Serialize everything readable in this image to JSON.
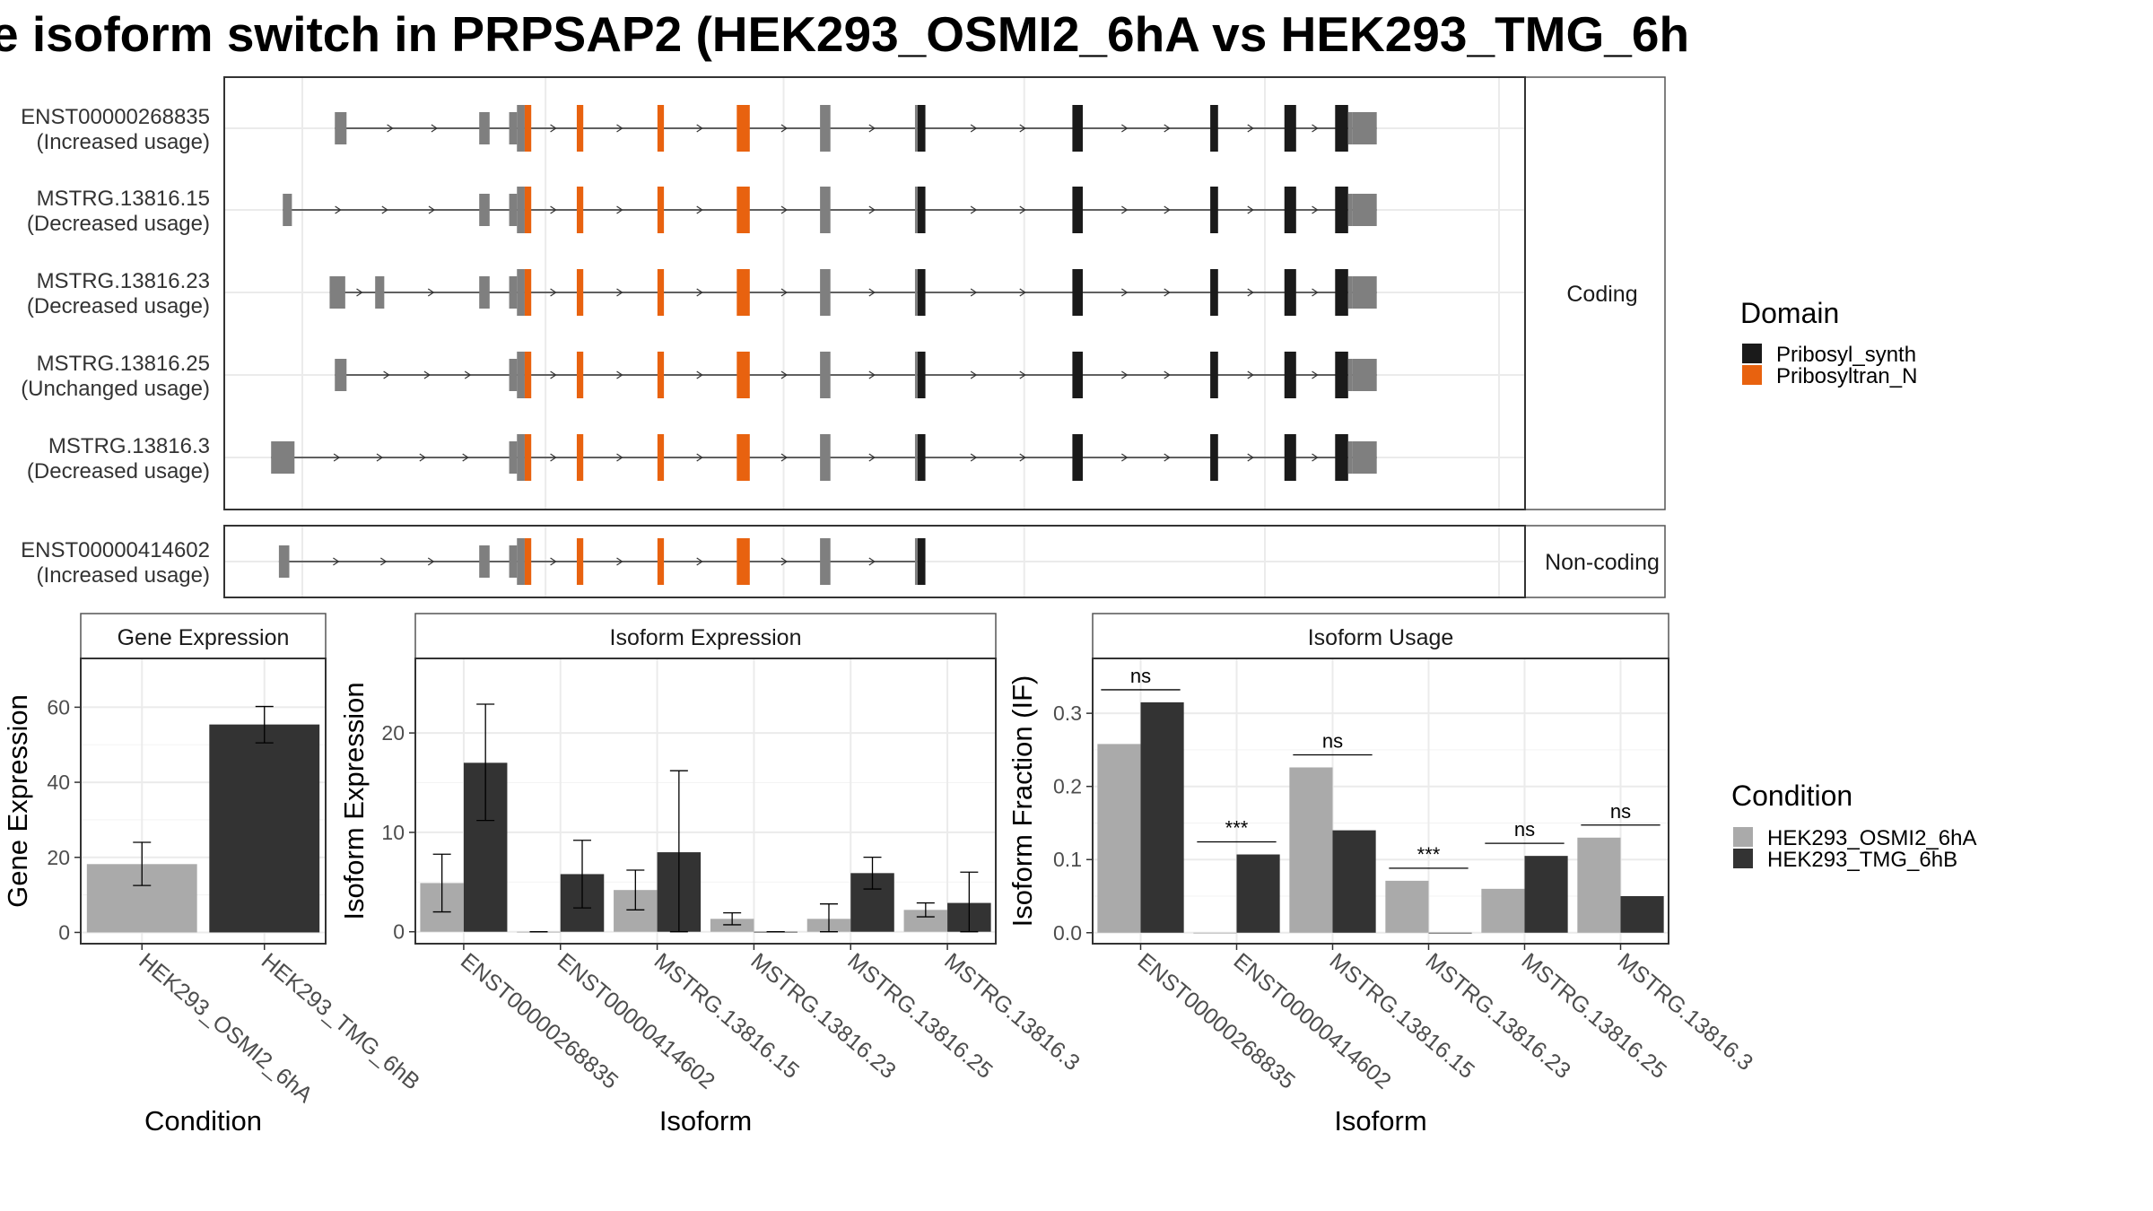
{
  "title": "e isoform switch in PRPSAP2 (HEK293_OSMI2_6hA vs HEK293_TMG_6h",
  "colors": {
    "domain_Pribosyl_synth": "#1a1a1a",
    "domain_Pribosyltran_N": "#e8620f",
    "exon_plain": "#7f7f7f",
    "cond_OSMI2": "#aaaaaa",
    "cond_TMG": "#333333"
  },
  "structure": {
    "coding_label": "Coding",
    "noncoding_label": "Non-coding",
    "transcripts": [
      {
        "id": "ENST00000268835",
        "usage": "(Increased usage)",
        "group": "coding",
        "first_exons": [
          [
            0.085,
            0.094
          ],
          [
            0.196,
            0.204
          ],
          [
            0.219,
            0.225
          ]
        ]
      },
      {
        "id": "MSTRG.13816.15",
        "usage": "(Decreased usage)",
        "group": "coding",
        "first_exons": [
          [
            0.045,
            0.052
          ],
          [
            0.196,
            0.204
          ],
          [
            0.219,
            0.225
          ]
        ]
      },
      {
        "id": "MSTRG.13816.23",
        "usage": "(Decreased usage)",
        "group": "coding",
        "first_exons": [
          [
            0.081,
            0.093
          ],
          [
            0.116,
            0.123
          ],
          [
            0.196,
            0.204
          ],
          [
            0.219,
            0.225
          ]
        ]
      },
      {
        "id": "MSTRG.13816.25",
        "usage": "(Unchanged usage)",
        "group": "coding",
        "first_exons": [
          [
            0.085,
            0.094
          ],
          [
            0.219,
            0.225
          ]
        ]
      },
      {
        "id": "MSTRG.13816.3",
        "usage": "(Decreased usage)",
        "group": "coding",
        "first_exons": [
          [
            0.036,
            0.054
          ],
          [
            0.219,
            0.225
          ]
        ]
      },
      {
        "id": "ENST00000414602",
        "usage": "(Increased usage)",
        "group": "noncoding",
        "first_exons": [
          [
            0.042,
            0.05
          ],
          [
            0.196,
            0.204
          ],
          [
            0.219,
            0.225
          ]
        ]
      }
    ],
    "shared_exons": [
      {
        "range": [
          0.225,
          0.231
        ],
        "domain": "none"
      },
      {
        "range": [
          0.231,
          0.236
        ],
        "domain": "Pribosyltran_N"
      },
      {
        "range": [
          0.271,
          0.276
        ],
        "domain": "Pribosyltran_N"
      },
      {
        "range": [
          0.333,
          0.338
        ],
        "domain": "Pribosyltran_N"
      },
      {
        "range": [
          0.394,
          0.404
        ],
        "domain": "Pribosyltran_N"
      },
      {
        "range": [
          0.458,
          0.466
        ],
        "domain": "none"
      },
      {
        "range": [
          0.531,
          0.533
        ],
        "domain": "none"
      },
      {
        "range": [
          0.533,
          0.539
        ],
        "domain": "Pribosyl_synth"
      },
      {
        "range": [
          0.652,
          0.66
        ],
        "domain": "Pribosyl_synth"
      },
      {
        "range": [
          0.758,
          0.764
        ],
        "domain": "Pribosyl_synth"
      },
      {
        "range": [
          0.815,
          0.824
        ],
        "domain": "Pribosyl_synth"
      },
      {
        "range": [
          0.854,
          0.864
        ],
        "domain": "Pribosyl_synth"
      },
      {
        "range": [
          0.864,
          0.867
        ],
        "domain": "none"
      },
      {
        "range": [
          0.867,
          0.886
        ],
        "domain": "none"
      }
    ],
    "noncoding_end": 0.54
  },
  "legends": {
    "domain_title": "Domain",
    "domain_items": [
      "Pribosyl_synth",
      "Pribosyltran_N"
    ],
    "condition_title": "Condition",
    "condition_items": [
      "HEK293_OSMI2_6hA",
      "HEK293_TMG_6hB"
    ]
  },
  "chart_data": [
    {
      "type": "bar",
      "title": "Gene Expression",
      "xlabel": "Condition",
      "ylabel": "Gene Expression",
      "ylim": [
        -3,
        73
      ],
      "yticks": [
        0,
        20,
        40,
        60
      ],
      "categories": [
        "HEK293_OSMI2_6hA",
        "HEK293_TMG_6hB"
      ],
      "series": [
        {
          "name": "HEK293_OSMI2_6hA",
          "values": [
            18.2,
            null
          ],
          "err": [
            [
              12.5,
              24.0
            ],
            null
          ]
        },
        {
          "name": "HEK293_TMG_6hB",
          "values": [
            null,
            55.4
          ],
          "err": [
            null,
            [
              50.5,
              60.2
            ]
          ]
        }
      ]
    },
    {
      "type": "bar",
      "title": "Isoform Expression",
      "xlabel": "Isoform",
      "ylabel": "Isoform Expression",
      "ylim": [
        -1.2,
        27.5
      ],
      "yticks": [
        0,
        10,
        20
      ],
      "categories": [
        "ENST00000268835",
        "ENST00000414602",
        "MSTRG.13816.15",
        "MSTRG.13816.23",
        "MSTRG.13816.25",
        "MSTRG.13816.3"
      ],
      "series": [
        {
          "name": "HEK293_OSMI2_6hA",
          "values": [
            4.9,
            0.0,
            4.2,
            1.3,
            1.3,
            2.2
          ],
          "err": [
            [
              2.0,
              7.8
            ],
            [
              0,
              0
            ],
            [
              2.2,
              6.2
            ],
            [
              0.7,
              1.9
            ],
            [
              0.0,
              2.8
            ],
            [
              1.5,
              2.9
            ]
          ]
        },
        {
          "name": "HEK293_TMG_6hB",
          "values": [
            17.0,
            5.8,
            8.0,
            0.0,
            5.9,
            2.9
          ],
          "err": [
            [
              11.2,
              22.9
            ],
            [
              2.4,
              9.2
            ],
            [
              0.0,
              16.2
            ],
            [
              0,
              0
            ],
            [
              4.3,
              7.5
            ],
            [
              0.0,
              6.0
            ]
          ]
        }
      ]
    },
    {
      "type": "bar",
      "title": "Isoform Usage",
      "xlabel": "Isoform",
      "ylabel": "Isoform Fraction (IF)",
      "ylim": [
        -0.015,
        0.375
      ],
      "yticks": [
        0.0,
        0.1,
        0.2,
        0.3
      ],
      "ytick_labels": [
        "0.0",
        "0.1",
        "0.2",
        "0.3"
      ],
      "categories": [
        "ENST00000268835",
        "ENST00000414602",
        "MSTRG.13816.15",
        "MSTRG.13816.23",
        "MSTRG.13816.25",
        "MSTRG.13816.3"
      ],
      "series": [
        {
          "name": "HEK293_OSMI2_6hA",
          "values": [
            0.258,
            0.0,
            0.226,
            0.071,
            0.06,
            0.13
          ]
        },
        {
          "name": "HEK293_TMG_6hB",
          "values": [
            0.315,
            0.107,
            0.14,
            0.0,
            0.105,
            0.05
          ]
        }
      ],
      "significance": [
        "ns",
        "***",
        "ns",
        "***",
        "ns",
        "ns"
      ]
    }
  ]
}
